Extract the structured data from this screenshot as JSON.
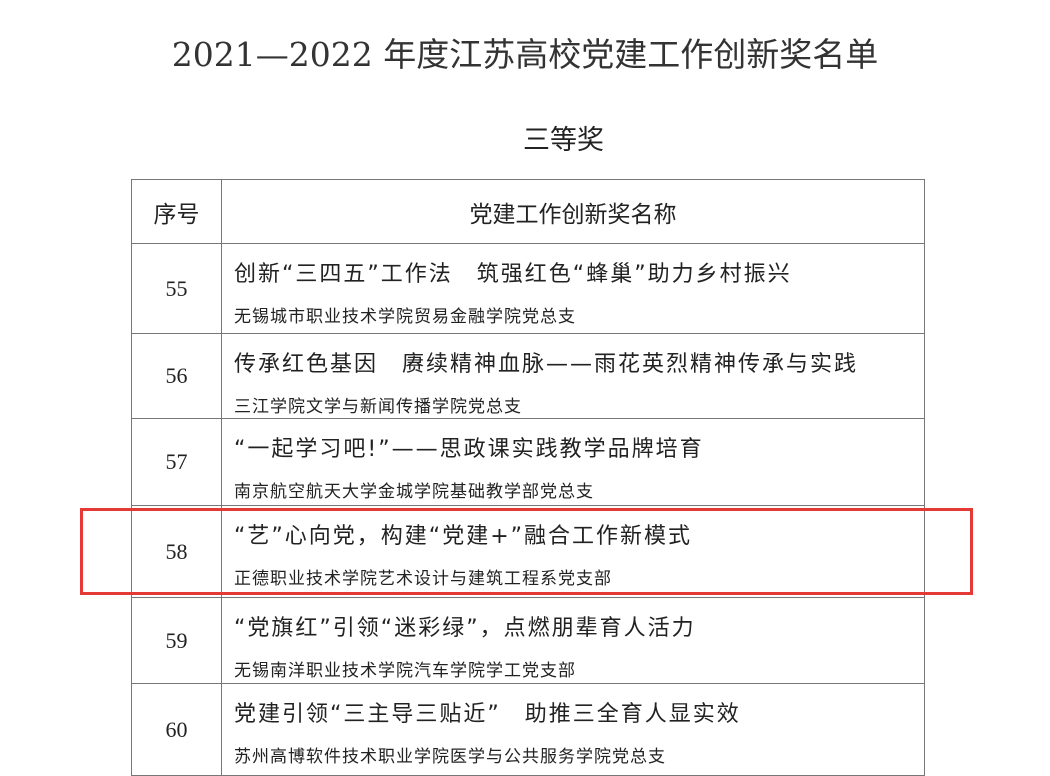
{
  "title": "2021—2022 年度江苏高校党建工作创新奖名单",
  "subtitle": "三等奖",
  "table": {
    "headers": [
      "序号",
      "党建工作创新奖名称"
    ],
    "rows": [
      {
        "no": "55",
        "name": "创新“三四五”工作法　筑强红色“蜂巢”助力乡村振兴",
        "org": "无锡城市职业技术学院贸易金融学院党总支"
      },
      {
        "no": "56",
        "name": "传承红色基因　赓续精神血脉——雨花英烈精神传承与实践",
        "org": "三江学院文学与新闻传播学院党总支"
      },
      {
        "no": "57",
        "name": "“一起学习吧!”——思政课实践教学品牌培育",
        "org": "南京航空航天大学金城学院基础教学部党总支"
      },
      {
        "no": "58",
        "name": "“艺”心向党，构建“党建+”融合工作新模式",
        "org": "正德职业技术学院艺术设计与建筑工程系党支部"
      },
      {
        "no": "59",
        "name": "“党旗红”引领“迷彩绿”，点燃朋辈育人活力",
        "org": "无锡南洋职业技术学院汽车学院学工党支部"
      },
      {
        "no": "60",
        "name": "党建引领“三主导三贴近”　助推三全育人显实效",
        "org": "苏州高博软件技术职业学院医学与公共服务学院党总支"
      }
    ]
  },
  "highlight_color": "#e53935"
}
